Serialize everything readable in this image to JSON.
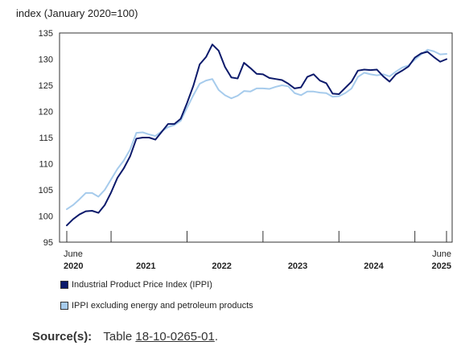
{
  "chart_data": {
    "type": "line",
    "title": "",
    "ylabel": "index (January 2020=100)",
    "xlabel": "",
    "ylim": [
      95,
      135
    ],
    "yticks": [
      95,
      100,
      105,
      110,
      115,
      120,
      125,
      130,
      135
    ],
    "x_axis": {
      "start_label": [
        "June",
        "2020"
      ],
      "end_label": [
        "June",
        "2025"
      ],
      "year_labels": [
        "2021",
        "2022",
        "2023",
        "2024"
      ]
    },
    "legend_position": "bottom",
    "grid": false,
    "x": [
      "2020-06",
      "2020-07",
      "2020-08",
      "2020-09",
      "2020-10",
      "2020-11",
      "2020-12",
      "2021-01",
      "2021-02",
      "2021-03",
      "2021-04",
      "2021-05",
      "2021-06",
      "2021-07",
      "2021-08",
      "2021-09",
      "2021-10",
      "2021-11",
      "2021-12",
      "2022-01",
      "2022-02",
      "2022-03",
      "2022-04",
      "2022-05",
      "2022-06",
      "2022-07",
      "2022-08",
      "2022-09",
      "2022-10",
      "2022-11",
      "2022-12",
      "2023-01",
      "2023-02",
      "2023-03",
      "2023-04",
      "2023-05",
      "2023-06",
      "2023-07",
      "2023-08",
      "2023-09",
      "2023-10",
      "2023-11",
      "2023-12",
      "2024-01",
      "2024-02",
      "2024-03",
      "2024-04",
      "2024-05",
      "2024-06",
      "2024-07",
      "2024-08",
      "2024-09",
      "2024-10",
      "2024-11",
      "2024-12",
      "2025-01",
      "2025-02",
      "2025-03",
      "2025-04",
      "2025-05",
      "2025-06"
    ],
    "series": [
      {
        "name": "Industrial Product Price Index (IPPI)",
        "color": "#0c1a6b",
        "values": [
          98.2,
          99.4,
          100.3,
          100.9,
          101.0,
          100.6,
          102.1,
          104.5,
          107.3,
          109.1,
          111.4,
          114.8,
          115.0,
          115.0,
          114.6,
          116.1,
          117.6,
          117.6,
          118.6,
          121.6,
          124.9,
          129.0,
          130.4,
          132.8,
          131.6,
          128.5,
          126.5,
          126.3,
          129.3,
          128.3,
          127.2,
          127.1,
          126.4,
          126.2,
          126.0,
          125.3,
          124.4,
          124.6,
          126.6,
          127.1,
          125.9,
          125.4,
          123.4,
          123.3,
          124.5,
          125.7,
          127.8,
          128.0,
          127.9,
          128.0,
          126.7,
          125.7,
          127.1,
          127.8,
          128.6,
          130.3,
          131.1,
          131.4,
          130.4,
          129.5,
          130.0
        ]
      },
      {
        "name": "IPPI excluding energy and petroleum products",
        "color": "#a6cbec",
        "values": [
          101.3,
          102.1,
          103.2,
          104.4,
          104.4,
          103.7,
          105.0,
          107.0,
          109.0,
          110.6,
          112.7,
          115.9,
          116.0,
          115.6,
          115.3,
          116.2,
          117.0,
          117.4,
          118.2,
          120.7,
          123.1,
          125.3,
          125.9,
          126.2,
          124.1,
          123.1,
          122.5,
          123.0,
          123.9,
          123.8,
          124.4,
          124.4,
          124.3,
          124.7,
          125.0,
          124.8,
          123.5,
          123.1,
          123.8,
          123.8,
          123.6,
          123.5,
          122.8,
          122.9,
          123.5,
          124.4,
          126.6,
          127.4,
          127.1,
          126.9,
          127.1,
          126.7,
          127.6,
          128.4,
          128.8,
          129.9,
          130.9,
          131.8,
          131.5,
          130.9,
          131.0
        ]
      }
    ]
  },
  "source": {
    "label": "Source(s):",
    "prefix": "Table",
    "link_text": "18-10-0265-01",
    "suffix": "."
  }
}
